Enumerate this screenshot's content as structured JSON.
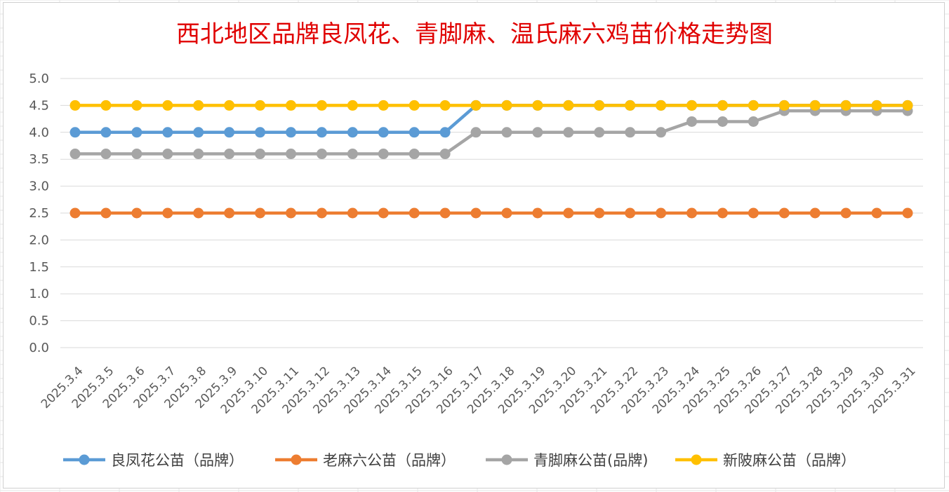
{
  "chart_data": {
    "type": "line",
    "title": "西北地区品牌良凤花、青脚麻、温氏麻六鸡苗价格走势图",
    "xlabel": "",
    "ylabel": "",
    "ylim": [
      0,
      5
    ],
    "ytick_labels": [
      "0.0",
      "0.5",
      "1.0",
      "1.5",
      "2.0",
      "2.5",
      "3.0",
      "3.5",
      "4.0",
      "4.5",
      "5.0"
    ],
    "categories": [
      "2025.3.4",
      "2025.3.5",
      "2025.3.6",
      "2025.3.7",
      "2025.3.8",
      "2025.3.9",
      "2025.3.10",
      "2025.3.11",
      "2025.3.12",
      "2025.3.13",
      "2025.3.14",
      "2025.3.15",
      "2025.3.16",
      "2025.3.17",
      "2025.3.18",
      "2025.3.19",
      "2025.3.20",
      "2025.3.21",
      "2025.3.22",
      "2025.3.23",
      "2025.3.24",
      "2025.3.25",
      "2025.3.26",
      "2025.3.27",
      "2025.3.28",
      "2025.3.29",
      "2025.3.30",
      "2025.3.31"
    ],
    "grid": true,
    "legend_position": "bottom",
    "series": [
      {
        "name": "良凤花公苗（品牌）",
        "color": "#5b9bd5",
        "values": [
          4.0,
          4.0,
          4.0,
          4.0,
          4.0,
          4.0,
          4.0,
          4.0,
          4.0,
          4.0,
          4.0,
          4.0,
          4.0,
          4.5,
          4.5,
          4.5,
          4.5,
          4.5,
          4.5,
          4.5,
          4.5,
          4.5,
          4.5,
          4.5,
          4.5,
          4.5,
          4.5,
          4.5
        ]
      },
      {
        "name": "老麻六公苗（品牌）",
        "color": "#ed7d31",
        "values": [
          2.5,
          2.5,
          2.5,
          2.5,
          2.5,
          2.5,
          2.5,
          2.5,
          2.5,
          2.5,
          2.5,
          2.5,
          2.5,
          2.5,
          2.5,
          2.5,
          2.5,
          2.5,
          2.5,
          2.5,
          2.5,
          2.5,
          2.5,
          2.5,
          2.5,
          2.5,
          2.5,
          2.5
        ]
      },
      {
        "name": "青脚麻公苗(品牌)",
        "color": "#a5a5a5",
        "values": [
          3.6,
          3.6,
          3.6,
          3.6,
          3.6,
          3.6,
          3.6,
          3.6,
          3.6,
          3.6,
          3.6,
          3.6,
          3.6,
          4.0,
          4.0,
          4.0,
          4.0,
          4.0,
          4.0,
          4.0,
          4.2,
          4.2,
          4.2,
          4.4,
          4.4,
          4.4,
          4.4,
          4.4
        ]
      },
      {
        "name": "新陂麻公苗（品牌）",
        "color": "#ffc000",
        "values": [
          4.5,
          4.5,
          4.5,
          4.5,
          4.5,
          4.5,
          4.5,
          4.5,
          4.5,
          4.5,
          4.5,
          4.5,
          4.5,
          4.5,
          4.5,
          4.5,
          4.5,
          4.5,
          4.5,
          4.5,
          4.5,
          4.5,
          4.5,
          4.5,
          4.5,
          4.5,
          4.5,
          4.5
        ]
      }
    ]
  }
}
